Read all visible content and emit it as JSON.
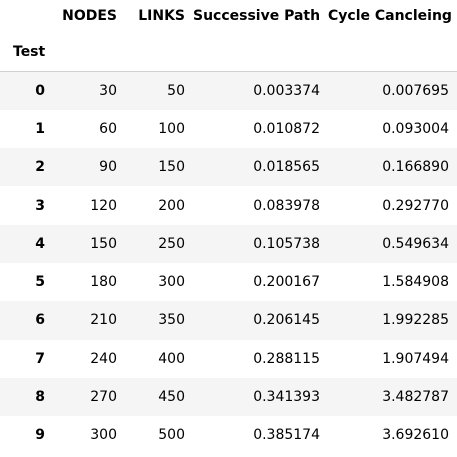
{
  "table": {
    "index_name": "Test",
    "columns": [
      "NODES",
      "LINKS",
      "Successive Path",
      "Cycle Cancleing"
    ],
    "rows": [
      {
        "index": "0",
        "cells": [
          "30",
          "50",
          "0.003374",
          "0.007695"
        ]
      },
      {
        "index": "1",
        "cells": [
          "60",
          "100",
          "0.010872",
          "0.093004"
        ]
      },
      {
        "index": "2",
        "cells": [
          "90",
          "150",
          "0.018565",
          "0.166890"
        ]
      },
      {
        "index": "3",
        "cells": [
          "120",
          "200",
          "0.083978",
          "0.292770"
        ]
      },
      {
        "index": "4",
        "cells": [
          "150",
          "250",
          "0.105738",
          "0.549634"
        ]
      },
      {
        "index": "5",
        "cells": [
          "180",
          "300",
          "0.200167",
          "1.584908"
        ]
      },
      {
        "index": "6",
        "cells": [
          "210",
          "350",
          "0.206145",
          "1.992285"
        ]
      },
      {
        "index": "7",
        "cells": [
          "240",
          "400",
          "0.288115",
          "1.907494"
        ]
      },
      {
        "index": "8",
        "cells": [
          "270",
          "450",
          "0.341393",
          "3.482787"
        ]
      },
      {
        "index": "9",
        "cells": [
          "300",
          "500",
          "0.385174",
          "3.692610"
        ]
      }
    ]
  },
  "colors": {
    "stripe": "#f5f5f5",
    "header_rule": "#d0d0d0",
    "text": "#000000"
  }
}
